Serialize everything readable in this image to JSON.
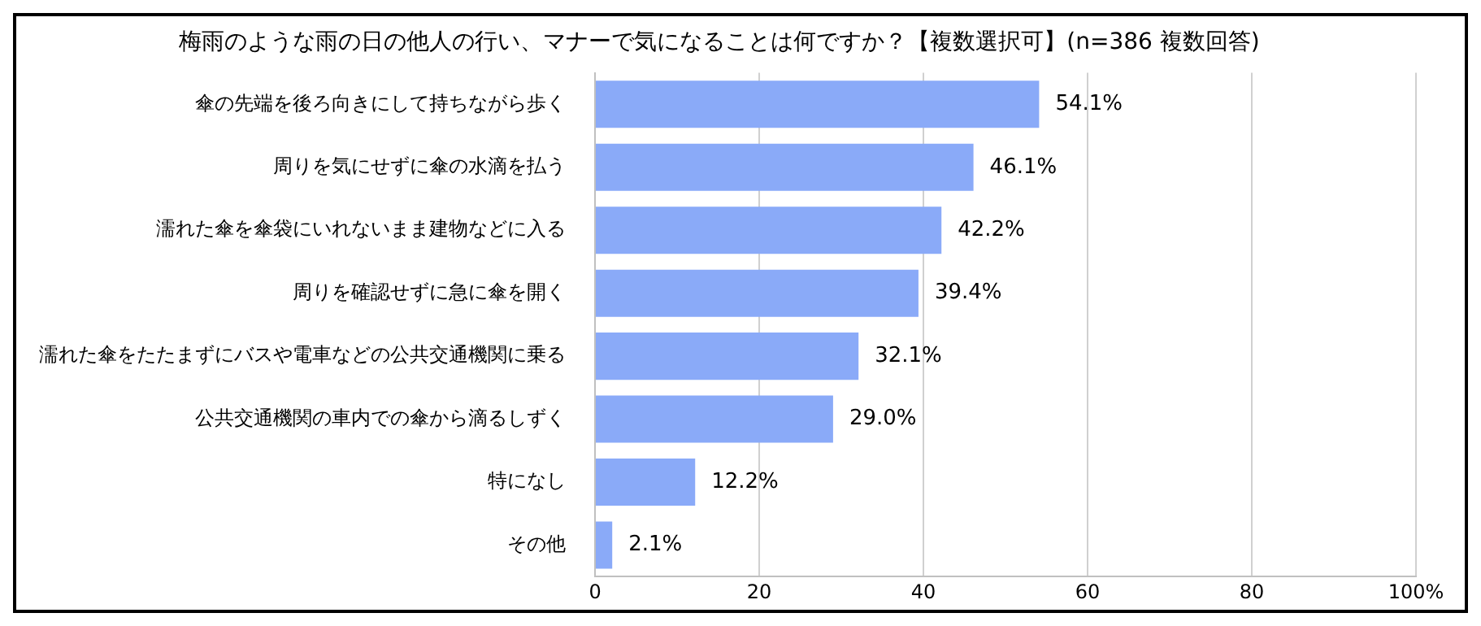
{
  "chart_data": {
    "type": "bar",
    "orientation": "horizontal",
    "title": "梅雨のような雨の日の他人の行い、マナーで気になることは何ですか？【複数選択可】(n=386 複数回答)",
    "categories": [
      "傘の先端を後ろ向きにして持ちながら歩く",
      "周りを気にせずに傘の水滴を払う",
      "濡れた傘を傘袋にいれないまま建物などに入る",
      "周りを確認せずに急に傘を開く",
      "濡れた傘をたたまずにバスや電車などの公共交通機関に乗る",
      "公共交通機関の車内での傘から滴るしずく",
      "特になし",
      "その他"
    ],
    "values": [
      54.1,
      46.1,
      42.2,
      39.4,
      32.1,
      29.0,
      12.2,
      2.1
    ],
    "value_labels": [
      "54.1%",
      "46.1%",
      "42.2%",
      "39.4%",
      "32.1%",
      "29.0%",
      "12.2%",
      "2.1%"
    ],
    "color": "#8aaaf8",
    "xlim": [
      0,
      100
    ],
    "xticks": [
      0,
      20,
      40,
      60,
      80,
      {
        "value": 100,
        "label": "100%"
      }
    ],
    "grid": "x",
    "legend": false
  }
}
